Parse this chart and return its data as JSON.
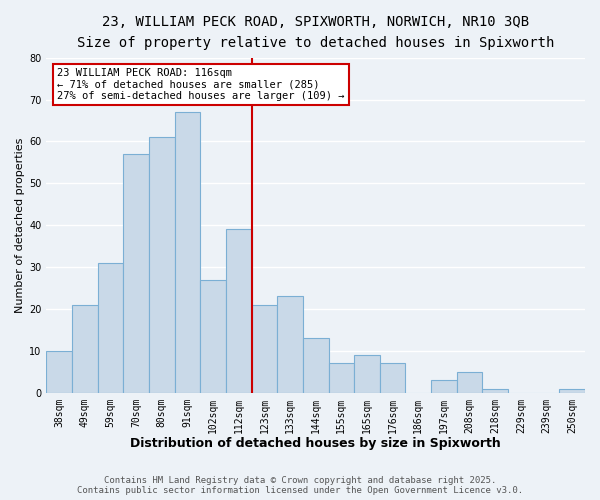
{
  "title": "23, WILLIAM PECK ROAD, SPIXWORTH, NORWICH, NR10 3QB",
  "subtitle": "Size of property relative to detached houses in Spixworth",
  "xlabel": "Distribution of detached houses by size in Spixworth",
  "ylabel": "Number of detached properties",
  "categories": [
    "38sqm",
    "49sqm",
    "59sqm",
    "70sqm",
    "80sqm",
    "91sqm",
    "102sqm",
    "112sqm",
    "123sqm",
    "133sqm",
    "144sqm",
    "155sqm",
    "165sqm",
    "176sqm",
    "186sqm",
    "197sqm",
    "208sqm",
    "218sqm",
    "229sqm",
    "239sqm",
    "250sqm"
  ],
  "values": [
    10,
    21,
    31,
    57,
    61,
    67,
    27,
    39,
    21,
    23,
    13,
    7,
    9,
    7,
    0,
    3,
    5,
    1,
    0,
    0,
    1
  ],
  "bar_color": "#c9d9e8",
  "bar_edge_color": "#7bafd4",
  "vline_x": 7.5,
  "vline_color": "#cc0000",
  "annotation_title": "23 WILLIAM PECK ROAD: 116sqm",
  "annotation_line1": "← 71% of detached houses are smaller (285)",
  "annotation_line2": "27% of semi-detached houses are larger (109) →",
  "annotation_box_color": "#cc0000",
  "ylim": [
    0,
    80
  ],
  "yticks": [
    0,
    10,
    20,
    30,
    40,
    50,
    60,
    70,
    80
  ],
  "footer1": "Contains HM Land Registry data © Crown copyright and database right 2025.",
  "footer2": "Contains public sector information licensed under the Open Government Licence v3.0.",
  "background_color": "#edf2f7",
  "grid_color": "#ffffff",
  "title_fontsize": 10,
  "subtitle_fontsize": 9,
  "xlabel_fontsize": 9,
  "ylabel_fontsize": 8,
  "tick_fontsize": 7,
  "annotation_fontsize": 7.5,
  "footer_fontsize": 6.5
}
